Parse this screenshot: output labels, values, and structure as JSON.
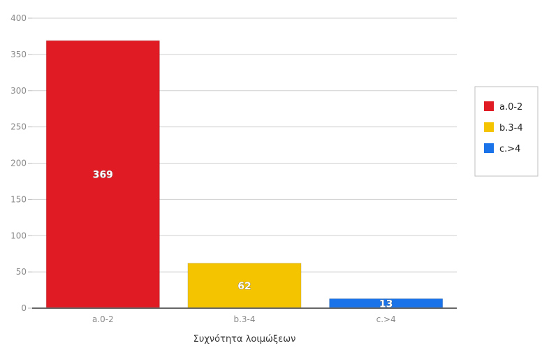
{
  "chart_data": {
    "type": "bar",
    "title": "",
    "xlabel": "Συχνότητα λοιμώξεων",
    "ylabel": "",
    "categories": [
      "a.0-2",
      "b.3-4",
      "c.>4"
    ],
    "values": [
      369,
      62,
      13
    ],
    "data_labels": [
      "369",
      "62",
      "13"
    ],
    "colors": [
      "#e01b24",
      "#f5c400",
      "#1a73e8"
    ],
    "ylim": [
      0,
      400
    ],
    "yticks": [
      0,
      50,
      100,
      150,
      200,
      250,
      300,
      350,
      400
    ],
    "ytick_labels": [
      "0",
      "50",
      "100",
      "150",
      "200",
      "250",
      "300",
      "350",
      "400"
    ],
    "grid": true,
    "legend": {
      "placement": "right",
      "entries": [
        "a.0-2",
        "b.3-4",
        "c.>4"
      ]
    }
  }
}
